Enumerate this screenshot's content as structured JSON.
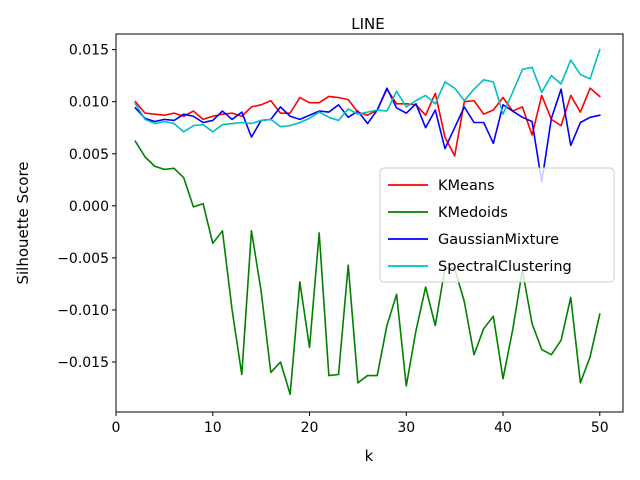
{
  "chart_data": {
    "type": "line",
    "title": "LINE",
    "xlabel": "k",
    "ylabel": "Silhouette Score",
    "xlim": [
      0,
      52.4
    ],
    "ylim": [
      -0.0198,
      0.0165
    ],
    "xticks": [
      0,
      10,
      20,
      30,
      40,
      50
    ],
    "yticks": [
      -0.015,
      -0.01,
      -0.005,
      0.0,
      0.005,
      0.01,
      0.015
    ],
    "ytick_labels": [
      "−0.015",
      "−0.010",
      "−0.005",
      "0.000",
      "0.005",
      "0.010",
      "0.015"
    ],
    "legend_position": "center-right",
    "grid": false,
    "x": [
      2,
      3,
      4,
      5,
      6,
      7,
      8,
      9,
      10,
      11,
      12,
      13,
      14,
      15,
      16,
      17,
      18,
      19,
      20,
      21,
      22,
      23,
      24,
      25,
      26,
      27,
      28,
      29,
      30,
      31,
      32,
      33,
      34,
      35,
      36,
      37,
      38,
      39,
      40,
      41,
      42,
      43,
      44,
      45,
      46,
      47,
      48,
      49,
      50
    ],
    "series": [
      {
        "name": "KMeans",
        "color": "#ff0000",
        "values": [
          0.01,
          0.0089,
          0.0088,
          0.0087,
          0.0089,
          0.0086,
          0.0091,
          0.0083,
          0.0086,
          0.0088,
          0.0089,
          0.0086,
          0.0095,
          0.0097,
          0.0101,
          0.0089,
          0.0089,
          0.0104,
          0.0099,
          0.0099,
          0.0105,
          0.0104,
          0.0102,
          0.009,
          0.0087,
          0.0092,
          0.0112,
          0.0098,
          0.0098,
          0.0097,
          0.0087,
          0.0108,
          0.0066,
          0.0048,
          0.01,
          0.0101,
          0.0088,
          0.0092,
          0.0104,
          0.0091,
          0.0095,
          0.0068,
          0.0106,
          0.0083,
          0.0077,
          0.0106,
          0.009,
          0.0113,
          0.0105
        ]
      },
      {
        "name": "KMedoids",
        "color": "#008000",
        "values": [
          0.0062,
          0.0047,
          0.0038,
          0.0035,
          0.0036,
          0.0027,
          -0.0001,
          0.0002,
          -0.0036,
          -0.0024,
          -0.01,
          -0.0162,
          -0.0024,
          -0.0082,
          -0.016,
          -0.015,
          -0.0181,
          -0.0073,
          -0.0136,
          -0.0026,
          -0.0163,
          -0.0162,
          -0.0057,
          -0.017,
          -0.0163,
          -0.0163,
          -0.0115,
          -0.0085,
          -0.0173,
          -0.012,
          -0.0078,
          -0.0115,
          -0.006,
          -0.006,
          -0.0092,
          -0.0143,
          -0.0118,
          -0.0106,
          -0.0166,
          -0.0119,
          -0.0062,
          -0.0113,
          -0.0138,
          -0.0143,
          -0.0129,
          -0.0088,
          -0.017,
          -0.0145,
          -0.0104
        ]
      },
      {
        "name": "GaussianMixture",
        "color": "#0000ff",
        "values": [
          0.0094,
          0.0084,
          0.0081,
          0.0083,
          0.0082,
          0.0088,
          0.0086,
          0.008,
          0.0082,
          0.0091,
          0.0083,
          0.009,
          0.0066,
          0.0082,
          0.0083,
          0.0095,
          0.0086,
          0.0083,
          0.0087,
          0.0091,
          0.009,
          0.0097,
          0.0085,
          0.0091,
          0.0079,
          0.0092,
          0.0113,
          0.0094,
          0.0089,
          0.0098,
          0.0075,
          0.0092,
          0.0055,
          0.0075,
          0.0095,
          0.008,
          0.008,
          0.006,
          0.0097,
          0.0091,
          0.0085,
          0.0081,
          0.0023,
          0.0084,
          0.0112,
          0.0058,
          0.008,
          0.0085,
          0.0087
        ]
      },
      {
        "name": "SpectralClustering",
        "color": "#00bfbf",
        "values": [
          0.0098,
          0.0083,
          0.0079,
          0.0081,
          0.0079,
          0.0071,
          0.0077,
          0.0078,
          0.0071,
          0.0078,
          0.0079,
          0.008,
          0.0079,
          0.0082,
          0.0083,
          0.0076,
          0.0077,
          0.008,
          0.0084,
          0.009,
          0.0085,
          0.0082,
          0.0093,
          0.0088,
          0.009,
          0.0092,
          0.0091,
          0.011,
          0.0095,
          0.0101,
          0.0106,
          0.0098,
          0.0119,
          0.0113,
          0.0101,
          0.0112,
          0.0121,
          0.0119,
          0.0088,
          0.0109,
          0.0131,
          0.0133,
          0.0109,
          0.0125,
          0.0117,
          0.014,
          0.0126,
          0.0122,
          0.015
        ]
      }
    ]
  }
}
